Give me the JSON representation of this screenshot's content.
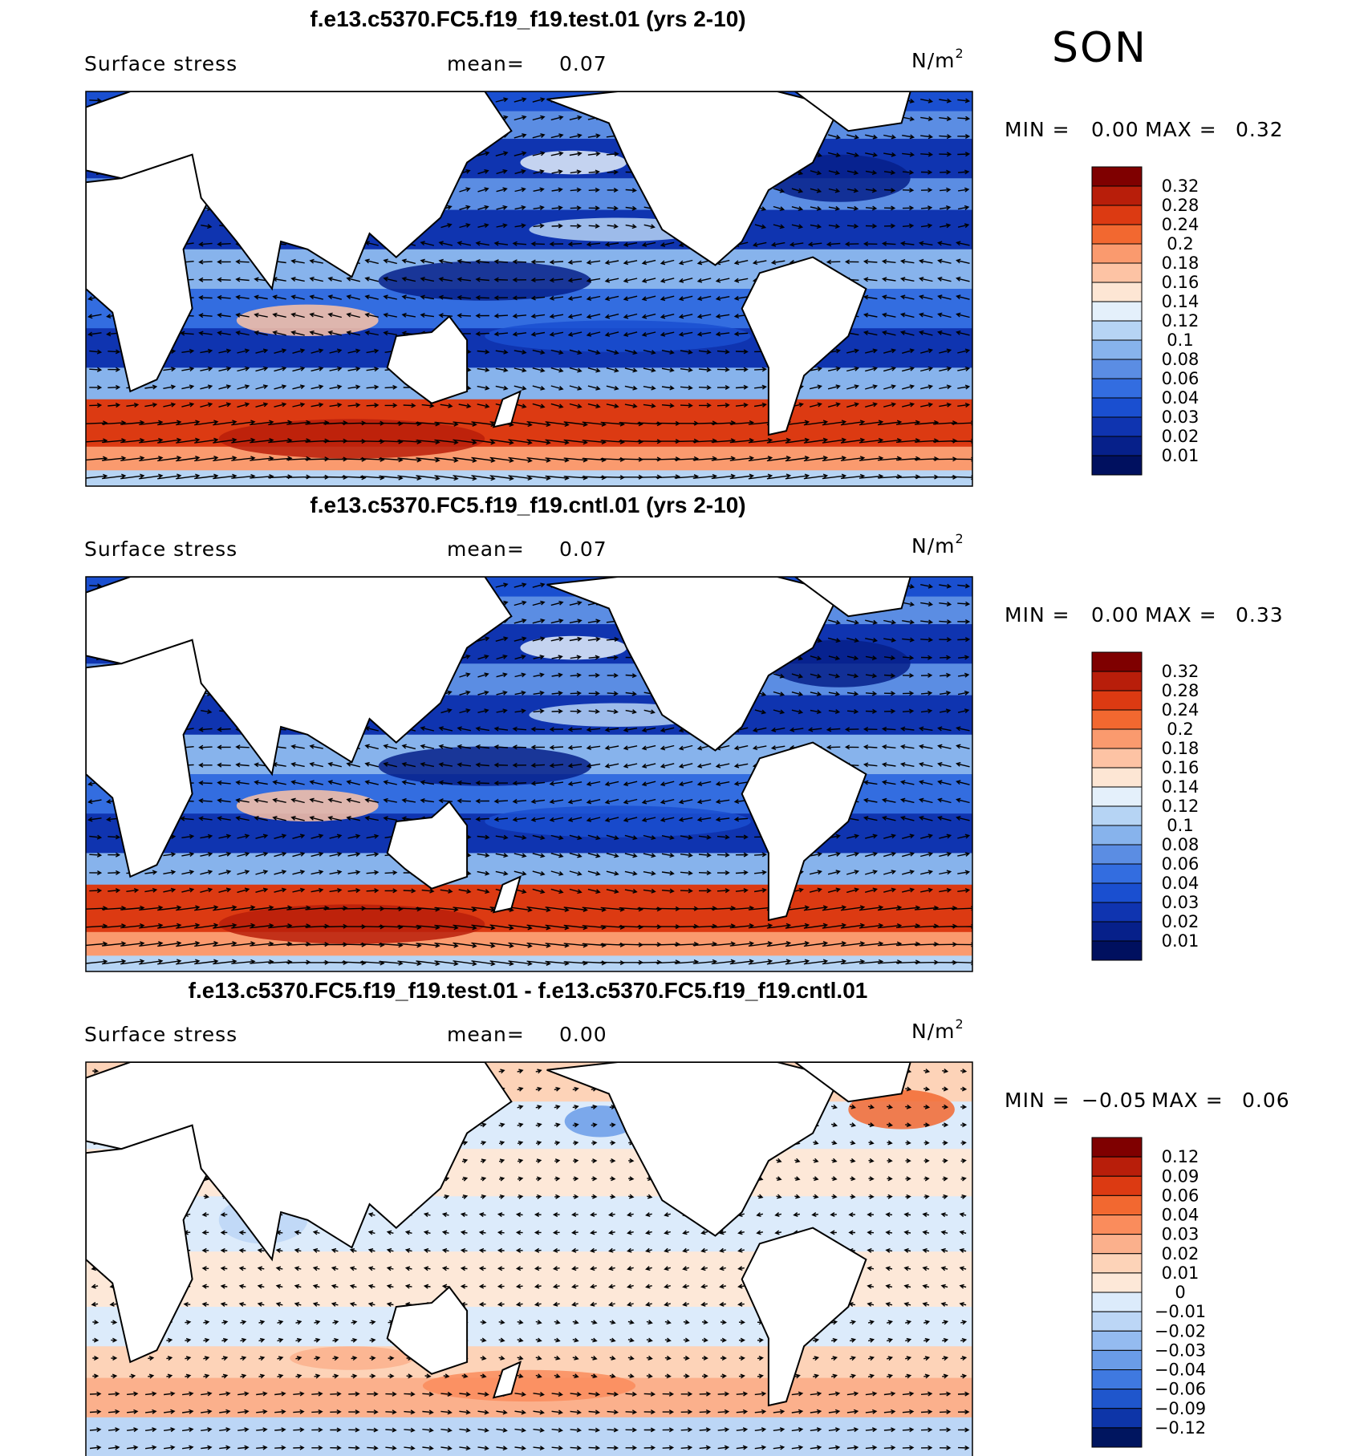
{
  "figure": {
    "season": "SON",
    "units_base": "N/m",
    "units_exp": "2"
  },
  "chart_data": [
    {
      "type": "contour map",
      "title": "f.e13.c5370.FC5.f19_f19.test.01 (yrs 2-10)",
      "variable": "Surface stress",
      "mean_label": "mean=",
      "mean": "0.07",
      "min_label": "MIN =",
      "min": "0.00",
      "max_label": "MAX =",
      "max": "0.32",
      "levels": [
        "0.32",
        "0.28",
        "0.24",
        "0.2",
        "0.18",
        "0.16",
        "0.14",
        "0.12",
        "0.1",
        "0.08",
        "0.06",
        "0.04",
        "0.03",
        "0.02",
        "0.01"
      ],
      "colors": [
        "#7f0000",
        "#b81e0a",
        "#dc3a12",
        "#f26830",
        "#fa9a6e",
        "#fdc3a4",
        "#fde6d4",
        "#e4f0fb",
        "#b6d4f4",
        "#87b3ec",
        "#5b8de3",
        "#336de0",
        "#1a4fd0",
        "#0f34b0",
        "#06208a",
        "#00105f"
      ],
      "color_scheme": "sequential"
    },
    {
      "type": "contour map",
      "title": "f.e13.c5370.FC5.f19_f19.cntl.01 (yrs 2-10)",
      "variable": "Surface stress",
      "mean_label": "mean=",
      "mean": "0.07",
      "min_label": "MIN =",
      "min": "0.00",
      "max_label": "MAX =",
      "max": "0.33",
      "levels": [
        "0.32",
        "0.28",
        "0.24",
        "0.2",
        "0.18",
        "0.16",
        "0.14",
        "0.12",
        "0.1",
        "0.08",
        "0.06",
        "0.04",
        "0.03",
        "0.02",
        "0.01"
      ],
      "colors": [
        "#7f0000",
        "#b81e0a",
        "#dc3a12",
        "#f26830",
        "#fa9a6e",
        "#fdc3a4",
        "#fde6d4",
        "#e4f0fb",
        "#b6d4f4",
        "#87b3ec",
        "#5b8de3",
        "#336de0",
        "#1a4fd0",
        "#0f34b0",
        "#06208a",
        "#00105f"
      ],
      "color_scheme": "sequential"
    },
    {
      "type": "contour map",
      "title": "f.e13.c5370.FC5.f19_f19.test.01 - f.e13.c5370.FC5.f19_f19.cntl.01",
      "variable": "Surface stress",
      "mean_label": "mean=",
      "mean": "0.00",
      "min_label": "MIN =",
      "min": "−0.05",
      "max_label": "MAX =",
      "max": "0.06",
      "levels": [
        "0.12",
        "0.09",
        "0.06",
        "0.04",
        "0.03",
        "0.02",
        "0.01",
        "0",
        "−0.01",
        "−0.02",
        "−0.03",
        "−0.04",
        "−0.06",
        "−0.09",
        "−0.12"
      ],
      "colors": [
        "#7f0000",
        "#b81e0a",
        "#dc3a12",
        "#f26830",
        "#fa8c5c",
        "#fbb08c",
        "#fdd3b8",
        "#fde8d8",
        "#dcebfb",
        "#bcd6f6",
        "#94bbf0",
        "#6a9ce8",
        "#3f79e0",
        "#1f56cc",
        "#0d35a8",
        "#00155f"
      ],
      "color_scheme": "diverging"
    }
  ]
}
